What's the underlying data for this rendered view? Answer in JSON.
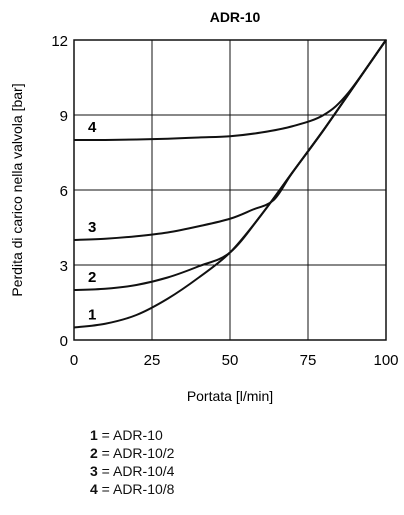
{
  "chart_data": {
    "type": "line",
    "title": "ADR-10",
    "xlabel": "Portata [l/min]",
    "ylabel": "Perdita di carico nella valvola [bar]",
    "xlim": [
      0,
      100
    ],
    "ylim": [
      0,
      12
    ],
    "xticks": [
      "0",
      "25",
      "50",
      "75",
      "100"
    ],
    "yticks": [
      "0",
      "3",
      "6",
      "9",
      "12"
    ],
    "grid": true,
    "series": [
      {
        "name": "1",
        "x": [
          0,
          10,
          20,
          30,
          40,
          50,
          60,
          70,
          80,
          90,
          100
        ],
        "y": [
          0.5,
          0.65,
          1.0,
          1.65,
          2.5,
          3.5,
          5.0,
          6.7,
          8.4,
          10.2,
          12.0
        ]
      },
      {
        "name": "2",
        "x": [
          0,
          10,
          20,
          30,
          40,
          50,
          60,
          70,
          80,
          90,
          100
        ],
        "y": [
          2.0,
          2.05,
          2.2,
          2.5,
          2.95,
          3.5,
          5.0,
          6.7,
          8.4,
          10.2,
          12.0
        ]
      },
      {
        "name": "3",
        "x": [
          0,
          10,
          20,
          30,
          40,
          50,
          57,
          64,
          70,
          80,
          90,
          100
        ],
        "y": [
          4.0,
          4.05,
          4.15,
          4.3,
          4.55,
          4.85,
          5.2,
          5.6,
          6.7,
          8.4,
          10.2,
          12.0
        ]
      },
      {
        "name": "4",
        "x": [
          0,
          10,
          20,
          30,
          40,
          50,
          60,
          70,
          80,
          88,
          100
        ],
        "y": [
          8.0,
          8.0,
          8.02,
          8.05,
          8.1,
          8.15,
          8.3,
          8.55,
          9.0,
          9.9,
          12.0
        ]
      }
    ]
  },
  "legend": [
    {
      "num": "1",
      "text": " = ADR-10"
    },
    {
      "num": "2",
      "text": " = ADR-10/2"
    },
    {
      "num": "3",
      "text": " = ADR-10/4"
    },
    {
      "num": "4",
      "text": " = ADR-10/8"
    }
  ]
}
